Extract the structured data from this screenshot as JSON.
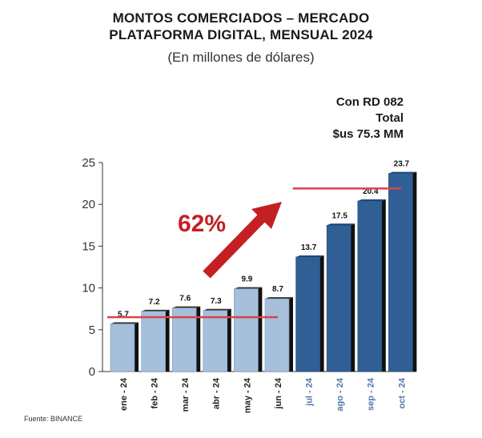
{
  "title_line1": "MONTOS COMERCIADOS – MERCADO",
  "title_line2": "PLATAFORMA DIGITAL, MENSUAL 2024",
  "subtitle": "(En millones de dólares)",
  "note": {
    "line1": "Con RD 082",
    "line2": "Total",
    "line3": "$us 75.3 MM"
  },
  "growth_label": "62%",
  "source": "Fuente: BINANCE",
  "colors": {
    "light_bar": "#a6bfda",
    "dark_bar": "#2f5f95",
    "bar_side": "#111111",
    "avg_line": "#d9444a",
    "arrow": "#c42024",
    "dark_tick_text": "#4f77a8"
  },
  "chart_data": {
    "type": "bar",
    "title": "MONTOS COMERCIADOS – MERCADO PLATAFORMA DIGITAL, MENSUAL 2024",
    "ylabel": "",
    "xlabel": "",
    "categories": [
      "ene - 24",
      "feb - 24",
      "mar - 24",
      "abr - 24",
      "may - 24",
      "jun - 24",
      "jul - 24",
      "ago - 24",
      "sep - 24",
      "oct - 24"
    ],
    "values": [
      5.7,
      7.2,
      7.6,
      7.3,
      9.9,
      8.7,
      13.7,
      17.5,
      20.4,
      23.7
    ],
    "value_labels": [
      "5.7",
      "7.2",
      "7.6",
      "7.3",
      "9.9",
      "8.7",
      "13.7",
      "17.5",
      "20.4",
      "23.7"
    ],
    "highlight_from_index": 6,
    "ylim": [
      0,
      25
    ],
    "yticks": [
      0,
      5,
      10,
      15,
      20,
      25
    ],
    "grid": false,
    "reference_lines": [
      {
        "from_index": 0,
        "to_index": 5,
        "y": 6.5
      },
      {
        "from_index": 6,
        "to_index": 9,
        "y": 21.9
      }
    ]
  }
}
